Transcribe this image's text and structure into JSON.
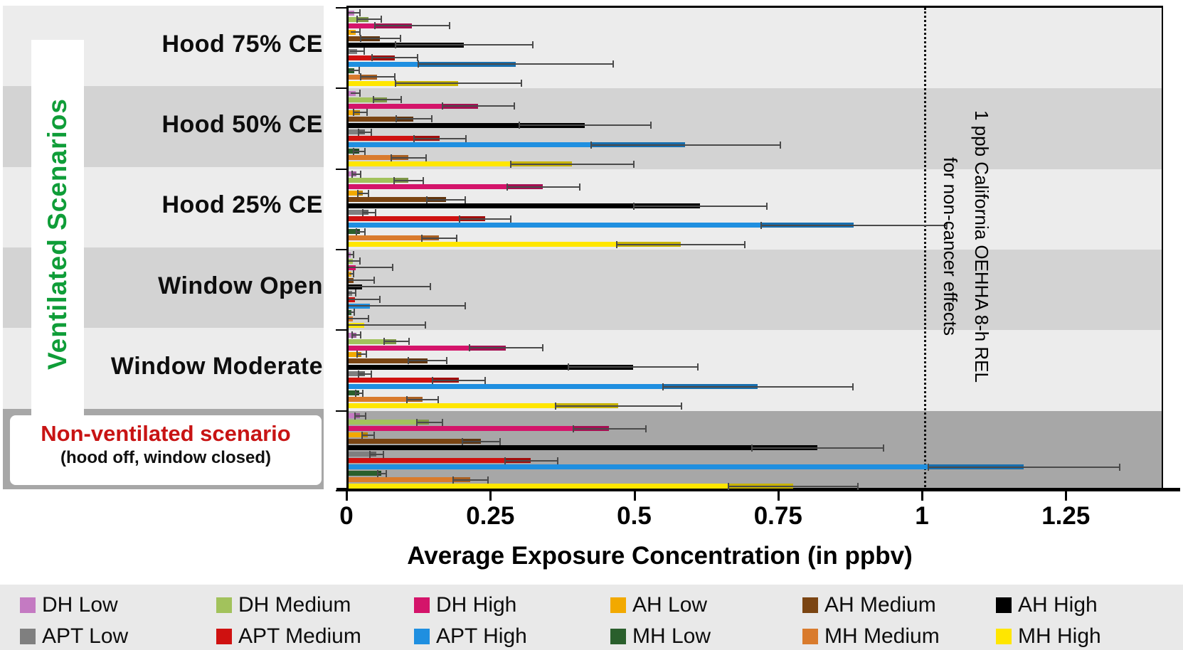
{
  "chart_data": {
    "type": "bar",
    "orientation": "horizontal",
    "xlabel": "Average Exposure Concentration (in ppbv)",
    "ylabel": "Ventilated Scenarios",
    "xlim": [
      0,
      1.41
    ],
    "x_ticks": [
      0,
      0.25,
      0.5,
      0.75,
      1,
      1.25
    ],
    "x_tick_labels": [
      "0",
      "0.25",
      "0.5",
      "0.75",
      "1",
      "1.25"
    ],
    "grid": false,
    "legend_position": "bottom",
    "band_colors": [
      "#ececec",
      "#d3d3d3",
      "#ececec",
      "#d3d3d3",
      "#ececec",
      "#a7a7a7"
    ],
    "categories": [
      "Hood 75% CE",
      "Hood 50% CE",
      "Hood 25% CE",
      "Window Open",
      "Window Moderate",
      "Non-ventilated scenario"
    ],
    "non_ventilated_label": {
      "title": "Non-ventilated scenario",
      "subtitle": "(hood off, window closed)",
      "title_color": "#c81414"
    },
    "reference_line": {
      "value": 1,
      "style": "dotted",
      "label_line1": "1 ppb California OEHHA 8-h REL",
      "label_line2": "for non-cancer effects"
    },
    "series": [
      {
        "name": "DH Low",
        "color": "#c47ac2",
        "values": [
          0.01,
          0.012,
          0.013,
          0.004,
          0.013,
          0.02
        ],
        "errors": [
          0.01,
          0.008,
          0.008,
          0.005,
          0.008,
          0.01
        ]
      },
      {
        "name": "DH Medium",
        "color": "#a2c25c",
        "values": [
          0.035,
          0.067,
          0.104,
          0.008,
          0.083,
          0.14
        ],
        "errors": [
          0.022,
          0.025,
          0.026,
          0.012,
          0.022,
          0.023
        ]
      },
      {
        "name": "DH High",
        "color": "#d4146a",
        "values": [
          0.11,
          0.225,
          0.338,
          0.012,
          0.273,
          0.453
        ],
        "errors": [
          0.065,
          0.063,
          0.064,
          0.065,
          0.064,
          0.064
        ]
      },
      {
        "name": "AH Low",
        "color": "#f2a900",
        "values": [
          0.012,
          0.02,
          0.025,
          0.005,
          0.022,
          0.033
        ],
        "errors": [
          0.008,
          0.012,
          0.01,
          0.004,
          0.009,
          0.011
        ]
      },
      {
        "name": "AH Medium",
        "color": "#7b4513",
        "values": [
          0.055,
          0.113,
          0.169,
          0.009,
          0.137,
          0.23
        ],
        "errors": [
          0.035,
          0.032,
          0.034,
          0.035,
          0.034,
          0.033
        ]
      },
      {
        "name": "AH High",
        "color": "#000000",
        "values": [
          0.2,
          0.41,
          0.611,
          0.024,
          0.494,
          0.815
        ],
        "errors": [
          0.12,
          0.115,
          0.116,
          0.118,
          0.113,
          0.115
        ]
      },
      {
        "name": "APT Low",
        "color": "#7f7f7f",
        "values": [
          0.015,
          0.028,
          0.035,
          0.006,
          0.028,
          0.048
        ],
        "errors": [
          0.012,
          0.012,
          0.012,
          0.006,
          0.012,
          0.012
        ]
      },
      {
        "name": "APT Medium",
        "color": "#cf1110",
        "values": [
          0.08,
          0.158,
          0.237,
          0.011,
          0.191,
          0.317
        ],
        "errors": [
          0.04,
          0.046,
          0.045,
          0.043,
          0.046,
          0.046
        ]
      },
      {
        "name": "APT High",
        "color": "#1f8fe0",
        "values": [
          0.29,
          0.585,
          0.878,
          0.037,
          0.711,
          1.173
        ],
        "errors": [
          0.17,
          0.165,
          0.162,
          0.166,
          0.166,
          0.167
        ]
      },
      {
        "name": "MH Low",
        "color": "#2a5f2c",
        "values": [
          0.01,
          0.018,
          0.02,
          0.005,
          0.018,
          0.057
        ],
        "errors": [
          0.008,
          0.01,
          0.008,
          0.005,
          0.007,
          0.008
        ]
      },
      {
        "name": "MH Medium",
        "color": "#d97b2d",
        "values": [
          0.05,
          0.104,
          0.157,
          0.008,
          0.128,
          0.211
        ],
        "errors": [
          0.03,
          0.031,
          0.031,
          0.027,
          0.028,
          0.031
        ]
      },
      {
        "name": "MH High",
        "color": "#ffe600",
        "values": [
          0.19,
          0.388,
          0.577,
          0.027,
          0.469,
          0.772
        ],
        "errors": [
          0.11,
          0.108,
          0.112,
          0.107,
          0.11,
          0.113
        ]
      }
    ]
  },
  "legend": {
    "rows": 2,
    "columns": 6
  },
  "colors": {
    "ventilated_label_green": "#0f9d38",
    "non_ventilated_red": "#c81414",
    "legend_background": "#e9e9e9",
    "error_bar": "#4a4a4a"
  }
}
